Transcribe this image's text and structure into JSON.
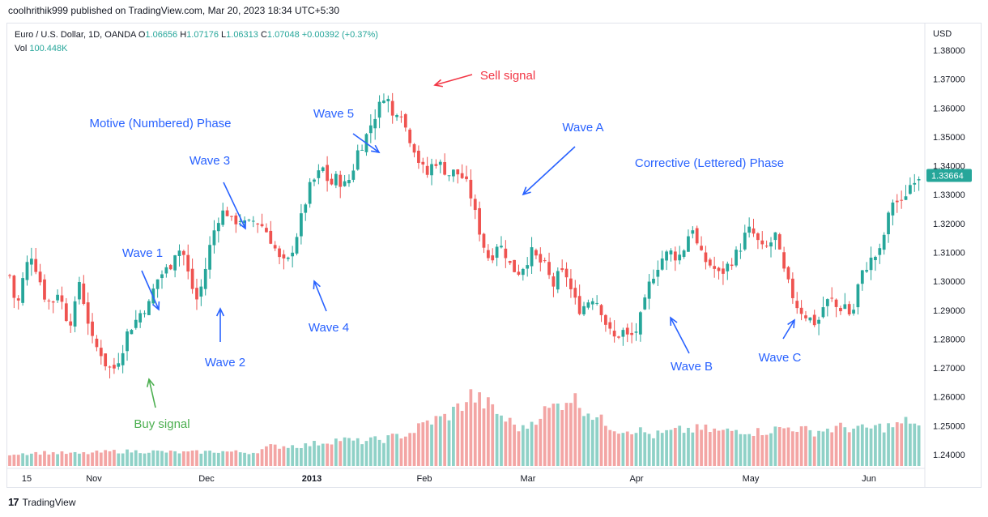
{
  "header": {
    "published": "coolhrithik999 published on TradingView.com, Mar 20, 2023 18:34 UTC+5:30"
  },
  "legend": {
    "symbol": "Euro / U.S. Dollar, 1D, OANDA",
    "o_label": "O",
    "o_value": "1.06656",
    "h_label": "H",
    "h_value": "1.07176",
    "l_label": "L",
    "l_value": "1.06313",
    "c_label": "C",
    "c_value": "1.07048",
    "change": "+0.00392 (+0.37%)",
    "vol_label": "Vol",
    "vol_value": "100.448K"
  },
  "footer": {
    "brand": "TradingView"
  },
  "colors": {
    "up": "#26a69a",
    "down": "#ef5350",
    "up_vol": "#8fd1c7",
    "down_vol": "#f3a5a4",
    "blue_annotation": "#2962ff",
    "red_annotation": "#f23645",
    "green_annotation": "#4caf50"
  },
  "chart_data": {
    "type": "candlestick",
    "title": "Euro / U.S. Dollar, 1D, OANDA",
    "y_axis": {
      "unit": "USD",
      "range": [
        1.235,
        1.383
      ],
      "ticks": [
        "1.38000",
        "1.37000",
        "1.36000",
        "1.35000",
        "1.34000",
        "1.33000",
        "1.32000",
        "1.31000",
        "1.30000",
        "1.29000",
        "1.28000",
        "1.27000",
        "1.26000",
        "1.25000",
        "1.24000"
      ]
    },
    "last_price": "1.33664",
    "x_axis": {
      "ticks": [
        "15",
        "Nov",
        "Dec",
        "2013",
        "Feb",
        "Mar",
        "Apr",
        "May",
        "Jun"
      ]
    },
    "grid": false,
    "close_path": [
      [
        0,
        1.302
      ],
      [
        4,
        1.29
      ],
      [
        8,
        1.302
      ],
      [
        12,
        1.31
      ],
      [
        16,
        1.303
      ],
      [
        20,
        1.295
      ],
      [
        24,
        1.292
      ],
      [
        28,
        1.297
      ],
      [
        32,
        1.288
      ],
      [
        36,
        1.286
      ],
      [
        40,
        1.3
      ],
      [
        44,
        1.289
      ],
      [
        48,
        1.278
      ],
      [
        52,
        1.276
      ],
      [
        56,
        1.27
      ],
      [
        60,
        1.27
      ],
      [
        64,
        1.275
      ],
      [
        68,
        1.283
      ],
      [
        72,
        1.286
      ],
      [
        76,
        1.29
      ],
      [
        80,
        1.292
      ],
      [
        84,
        1.3
      ],
      [
        88,
        1.303
      ],
      [
        92,
        1.305
      ],
      [
        96,
        1.312
      ],
      [
        100,
        1.309
      ],
      [
        104,
        1.299
      ],
      [
        108,
        1.293
      ],
      [
        112,
        1.303
      ],
      [
        116,
        1.315
      ],
      [
        120,
        1.322
      ],
      [
        124,
        1.325
      ],
      [
        128,
        1.32
      ],
      [
        132,
        1.322
      ],
      [
        136,
        1.319
      ],
      [
        140,
        1.321
      ],
      [
        144,
        1.32
      ],
      [
        148,
        1.317
      ],
      [
        152,
        1.312
      ],
      [
        156,
        1.306
      ],
      [
        160,
        1.307
      ],
      [
        164,
        1.314
      ],
      [
        168,
        1.323
      ],
      [
        172,
        1.332
      ],
      [
        176,
        1.336
      ],
      [
        180,
        1.339
      ],
      [
        184,
        1.333
      ],
      [
        188,
        1.336
      ],
      [
        192,
        1.333
      ],
      [
        196,
        1.336
      ],
      [
        200,
        1.345
      ],
      [
        204,
        1.349
      ],
      [
        208,
        1.355
      ],
      [
        212,
        1.36
      ],
      [
        216,
        1.366
      ],
      [
        220,
        1.357
      ],
      [
        224,
        1.361
      ],
      [
        228,
        1.352
      ],
      [
        232,
        1.347
      ],
      [
        236,
        1.34
      ],
      [
        240,
        1.337
      ],
      [
        244,
        1.342
      ],
      [
        248,
        1.34
      ],
      [
        252,
        1.337
      ],
      [
        256,
        1.338
      ],
      [
        260,
        1.336
      ],
      [
        264,
        1.332
      ],
      [
        268,
        1.322
      ],
      [
        272,
        1.313
      ],
      [
        276,
        1.307
      ],
      [
        280,
        1.313
      ],
      [
        284,
        1.311
      ],
      [
        288,
        1.305
      ],
      [
        292,
        1.303
      ],
      [
        296,
        1.306
      ],
      [
        300,
        1.31
      ],
      [
        304,
        1.307
      ],
      [
        308,
        1.305
      ],
      [
        312,
        1.298
      ],
      [
        316,
        1.303
      ],
      [
        320,
        1.302
      ],
      [
        324,
        1.294
      ],
      [
        328,
        1.29
      ],
      [
        332,
        1.293
      ],
      [
        336,
        1.295
      ],
      [
        340,
        1.29
      ],
      [
        344,
        1.283
      ],
      [
        348,
        1.28
      ],
      [
        352,
        1.283
      ],
      [
        356,
        1.28
      ],
      [
        360,
        1.283
      ],
      [
        364,
        1.29
      ],
      [
        368,
        1.3
      ],
      [
        372,
        1.305
      ],
      [
        376,
        1.309
      ],
      [
        380,
        1.31
      ],
      [
        384,
        1.308
      ],
      [
        388,
        1.312
      ],
      [
        392,
        1.32
      ],
      [
        396,
        1.31
      ],
      [
        400,
        1.307
      ],
      [
        404,
        1.305
      ],
      [
        408,
        1.302
      ],
      [
        412,
        1.305
      ],
      [
        416,
        1.308
      ],
      [
        420,
        1.312
      ],
      [
        424,
        1.318
      ],
      [
        428,
        1.316
      ],
      [
        432,
        1.311
      ],
      [
        436,
        1.312
      ],
      [
        440,
        1.316
      ],
      [
        444,
        1.305
      ],
      [
        448,
        1.298
      ],
      [
        452,
        1.292
      ],
      [
        456,
        1.289
      ],
      [
        460,
        1.287
      ],
      [
        464,
        1.285
      ],
      [
        468,
        1.292
      ],
      [
        472,
        1.294
      ],
      [
        476,
        1.29
      ],
      [
        480,
        1.292
      ],
      [
        484,
        1.287
      ],
      [
        488,
        1.3
      ],
      [
        492,
        1.305
      ],
      [
        496,
        1.308
      ],
      [
        500,
        1.31
      ],
      [
        504,
        1.32
      ],
      [
        508,
        1.329
      ],
      [
        512,
        1.326
      ],
      [
        516,
        1.332
      ],
      [
        520,
        1.336
      ],
      [
        524,
        1.337
      ]
    ],
    "volume_path": [
      [
        0,
        0.1
      ],
      [
        20,
        0.11
      ],
      [
        40,
        0.1
      ],
      [
        60,
        0.12
      ],
      [
        80,
        0.12
      ],
      [
        100,
        0.11
      ],
      [
        120,
        0.12
      ],
      [
        140,
        0.11
      ],
      [
        150,
        0.16
      ],
      [
        170,
        0.17
      ],
      [
        190,
        0.22
      ],
      [
        200,
        0.2
      ],
      [
        215,
        0.22
      ],
      [
        230,
        0.27
      ],
      [
        240,
        0.36
      ],
      [
        250,
        0.4
      ],
      [
        258,
        0.48
      ],
      [
        265,
        0.58
      ],
      [
        275,
        0.5
      ],
      [
        285,
        0.38
      ],
      [
        295,
        0.3
      ],
      [
        305,
        0.43
      ],
      [
        315,
        0.5
      ],
      [
        322,
        0.58
      ],
      [
        330,
        0.48
      ],
      [
        340,
        0.37
      ],
      [
        350,
        0.3
      ],
      [
        360,
        0.3
      ],
      [
        370,
        0.25
      ],
      [
        380,
        0.28
      ],
      [
        390,
        0.3
      ],
      [
        400,
        0.3
      ],
      [
        410,
        0.28
      ],
      [
        420,
        0.3
      ],
      [
        430,
        0.28
      ],
      [
        440,
        0.3
      ],
      [
        450,
        0.32
      ],
      [
        460,
        0.28
      ],
      [
        470,
        0.3
      ],
      [
        480,
        0.32
      ],
      [
        490,
        0.3
      ],
      [
        500,
        0.32
      ],
      [
        510,
        0.33
      ],
      [
        518,
        0.38
      ],
      [
        524,
        0.3
      ]
    ],
    "annotations": [
      {
        "text": "Motive (Numbered) Phase",
        "color": "blue"
      },
      {
        "text": "Corrective (Lettered) Phase",
        "color": "blue"
      },
      {
        "text": "Wave 1",
        "color": "blue"
      },
      {
        "text": "Wave 2",
        "color": "blue"
      },
      {
        "text": "Wave 3",
        "color": "blue"
      },
      {
        "text": "Wave 4",
        "color": "blue"
      },
      {
        "text": "Wave 5",
        "color": "blue"
      },
      {
        "text": "Wave A",
        "color": "blue"
      },
      {
        "text": "Wave B",
        "color": "blue"
      },
      {
        "text": "Wave C",
        "color": "blue"
      },
      {
        "text": "Sell signal",
        "color": "red"
      },
      {
        "text": "Buy signal",
        "color": "green"
      }
    ]
  }
}
